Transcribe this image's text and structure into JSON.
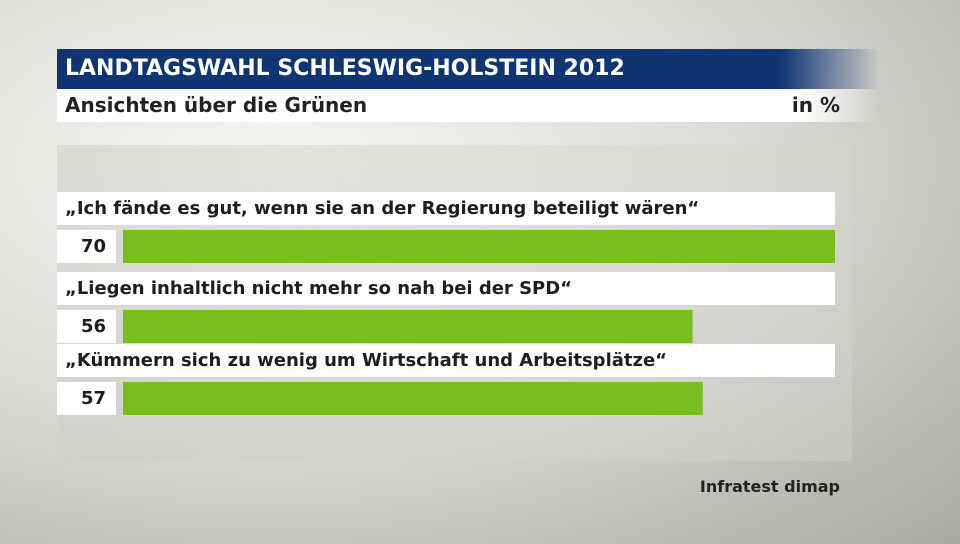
{
  "header": {
    "title": "LANDTAGSWAHL SCHLESWIG-HOLSTEIN 2012",
    "subtitle": "Ansichten über die Grünen",
    "unit": "in %"
  },
  "source": "Infratest dimap",
  "colors": {
    "bar": "#78be1e",
    "title_bg": "#0f3572"
  },
  "chart_data": {
    "type": "bar",
    "orientation": "horizontal",
    "title": "Ansichten über die Grünen",
    "unit": "in %",
    "categories": [
      "„Ich fände es gut, wenn sie an der Regierung beteiligt wären“",
      "„Liegen inhaltlich nicht mehr so nah bei der SPD“",
      "„Kümmern sich zu wenig um Wirtschaft und Arbeitsplätze“"
    ],
    "values": [
      70,
      56,
      57
    ],
    "value_labels": [
      "70",
      "56",
      "57"
    ],
    "xlim": [
      0,
      70
    ],
    "grid": false
  }
}
